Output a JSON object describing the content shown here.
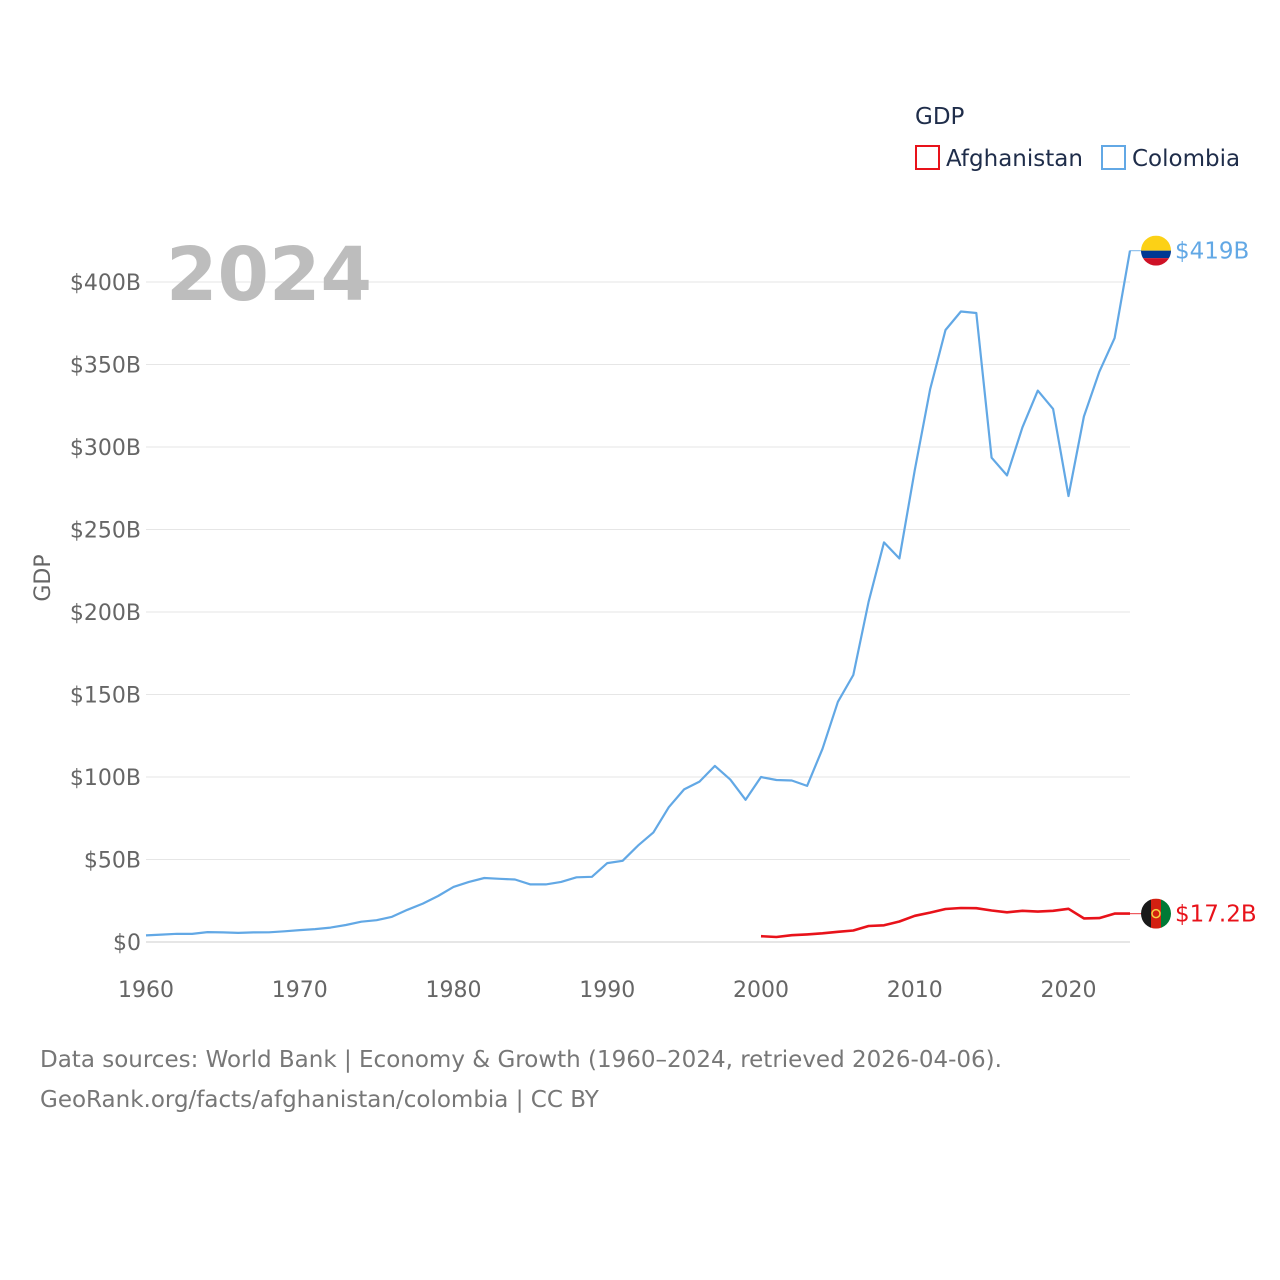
{
  "chart_data": {
    "type": "line",
    "title": "GDP",
    "year_label": "2024",
    "ylabel": "GDP",
    "xlabel": "",
    "xlim": [
      1960,
      2024
    ],
    "ylim": [
      0,
      420
    ],
    "x_ticks": [
      1960,
      1970,
      1980,
      1990,
      2000,
      2010,
      2020
    ],
    "y_ticks": [
      0,
      50,
      100,
      150,
      200,
      250,
      300,
      350,
      400
    ],
    "y_tick_labels": [
      "$0",
      "$50B",
      "$100B",
      "$150B",
      "$200B",
      "$250B",
      "$300B",
      "$350B",
      "$400B"
    ],
    "legend": {
      "title": "GDP",
      "position": "top-right"
    },
    "series": [
      {
        "name": "Afghanistan",
        "color": "#e8121a",
        "end_label": "$17.2B",
        "flag_icon": "afghanistan-flag-icon",
        "x": [
          2000,
          2001,
          2002,
          2003,
          2004,
          2005,
          2006,
          2007,
          2008,
          2009,
          2010,
          2011,
          2012,
          2013,
          2014,
          2015,
          2016,
          2017,
          2018,
          2019,
          2020,
          2021,
          2022,
          2023,
          2024
        ],
        "values": [
          3.5,
          3.0,
          4.1,
          4.6,
          5.3,
          6.2,
          7.0,
          9.7,
          10.1,
          12.4,
          15.9,
          17.8,
          20.0,
          20.6,
          20.5,
          19.1,
          18.0,
          18.9,
          18.4,
          18.9,
          20.1,
          14.3,
          14.5,
          17.2,
          17.2
        ]
      },
      {
        "name": "Colombia",
        "color": "#62a8e5",
        "end_label": "$419B",
        "flag_icon": "colombia-flag-icon",
        "x": [
          1960,
          1961,
          1962,
          1963,
          1964,
          1965,
          1966,
          1967,
          1968,
          1969,
          1970,
          1971,
          1972,
          1973,
          1974,
          1975,
          1976,
          1977,
          1978,
          1979,
          1980,
          1981,
          1982,
          1983,
          1984,
          1985,
          1986,
          1987,
          1988,
          1989,
          1990,
          1991,
          1992,
          1993,
          1994,
          1995,
          1996,
          1997,
          1998,
          1999,
          2000,
          2001,
          2002,
          2003,
          2004,
          2005,
          2006,
          2007,
          2008,
          2009,
          2010,
          2011,
          2012,
          2013,
          2014,
          2015,
          2016,
          2017,
          2018,
          2019,
          2020,
          2021,
          2022,
          2023,
          2024
        ],
        "values": [
          4.0,
          4.5,
          5.0,
          4.9,
          6.0,
          5.8,
          5.5,
          5.8,
          5.9,
          6.5,
          7.2,
          7.8,
          8.7,
          10.3,
          12.3,
          13.2,
          15.3,
          19.5,
          23.3,
          27.9,
          33.4,
          36.4,
          38.8,
          38.3,
          37.9,
          34.9,
          34.9,
          36.4,
          39.2,
          39.5,
          47.8,
          49.2,
          58.4,
          66.4,
          81.7,
          92.5,
          97.2,
          106.7,
          98.4,
          86.2,
          100.0,
          98.2,
          97.9,
          94.6,
          117.1,
          145.6,
          161.8,
          206.2,
          242.2,
          232.4,
          286.1,
          334.9,
          370.9,
          382.1,
          381.2,
          293.5,
          282.8,
          311.9,
          334.2,
          323.1,
          270.3,
          318.5,
          345.6,
          366.0,
          419.0
        ]
      }
    ]
  },
  "source": {
    "line1": "Data sources: World Bank | Economy & Growth (1960–2024, retrieved 2026-04-06).",
    "line2": "GeoRank.org/facts/afghanistan/colombia | CC BY"
  }
}
